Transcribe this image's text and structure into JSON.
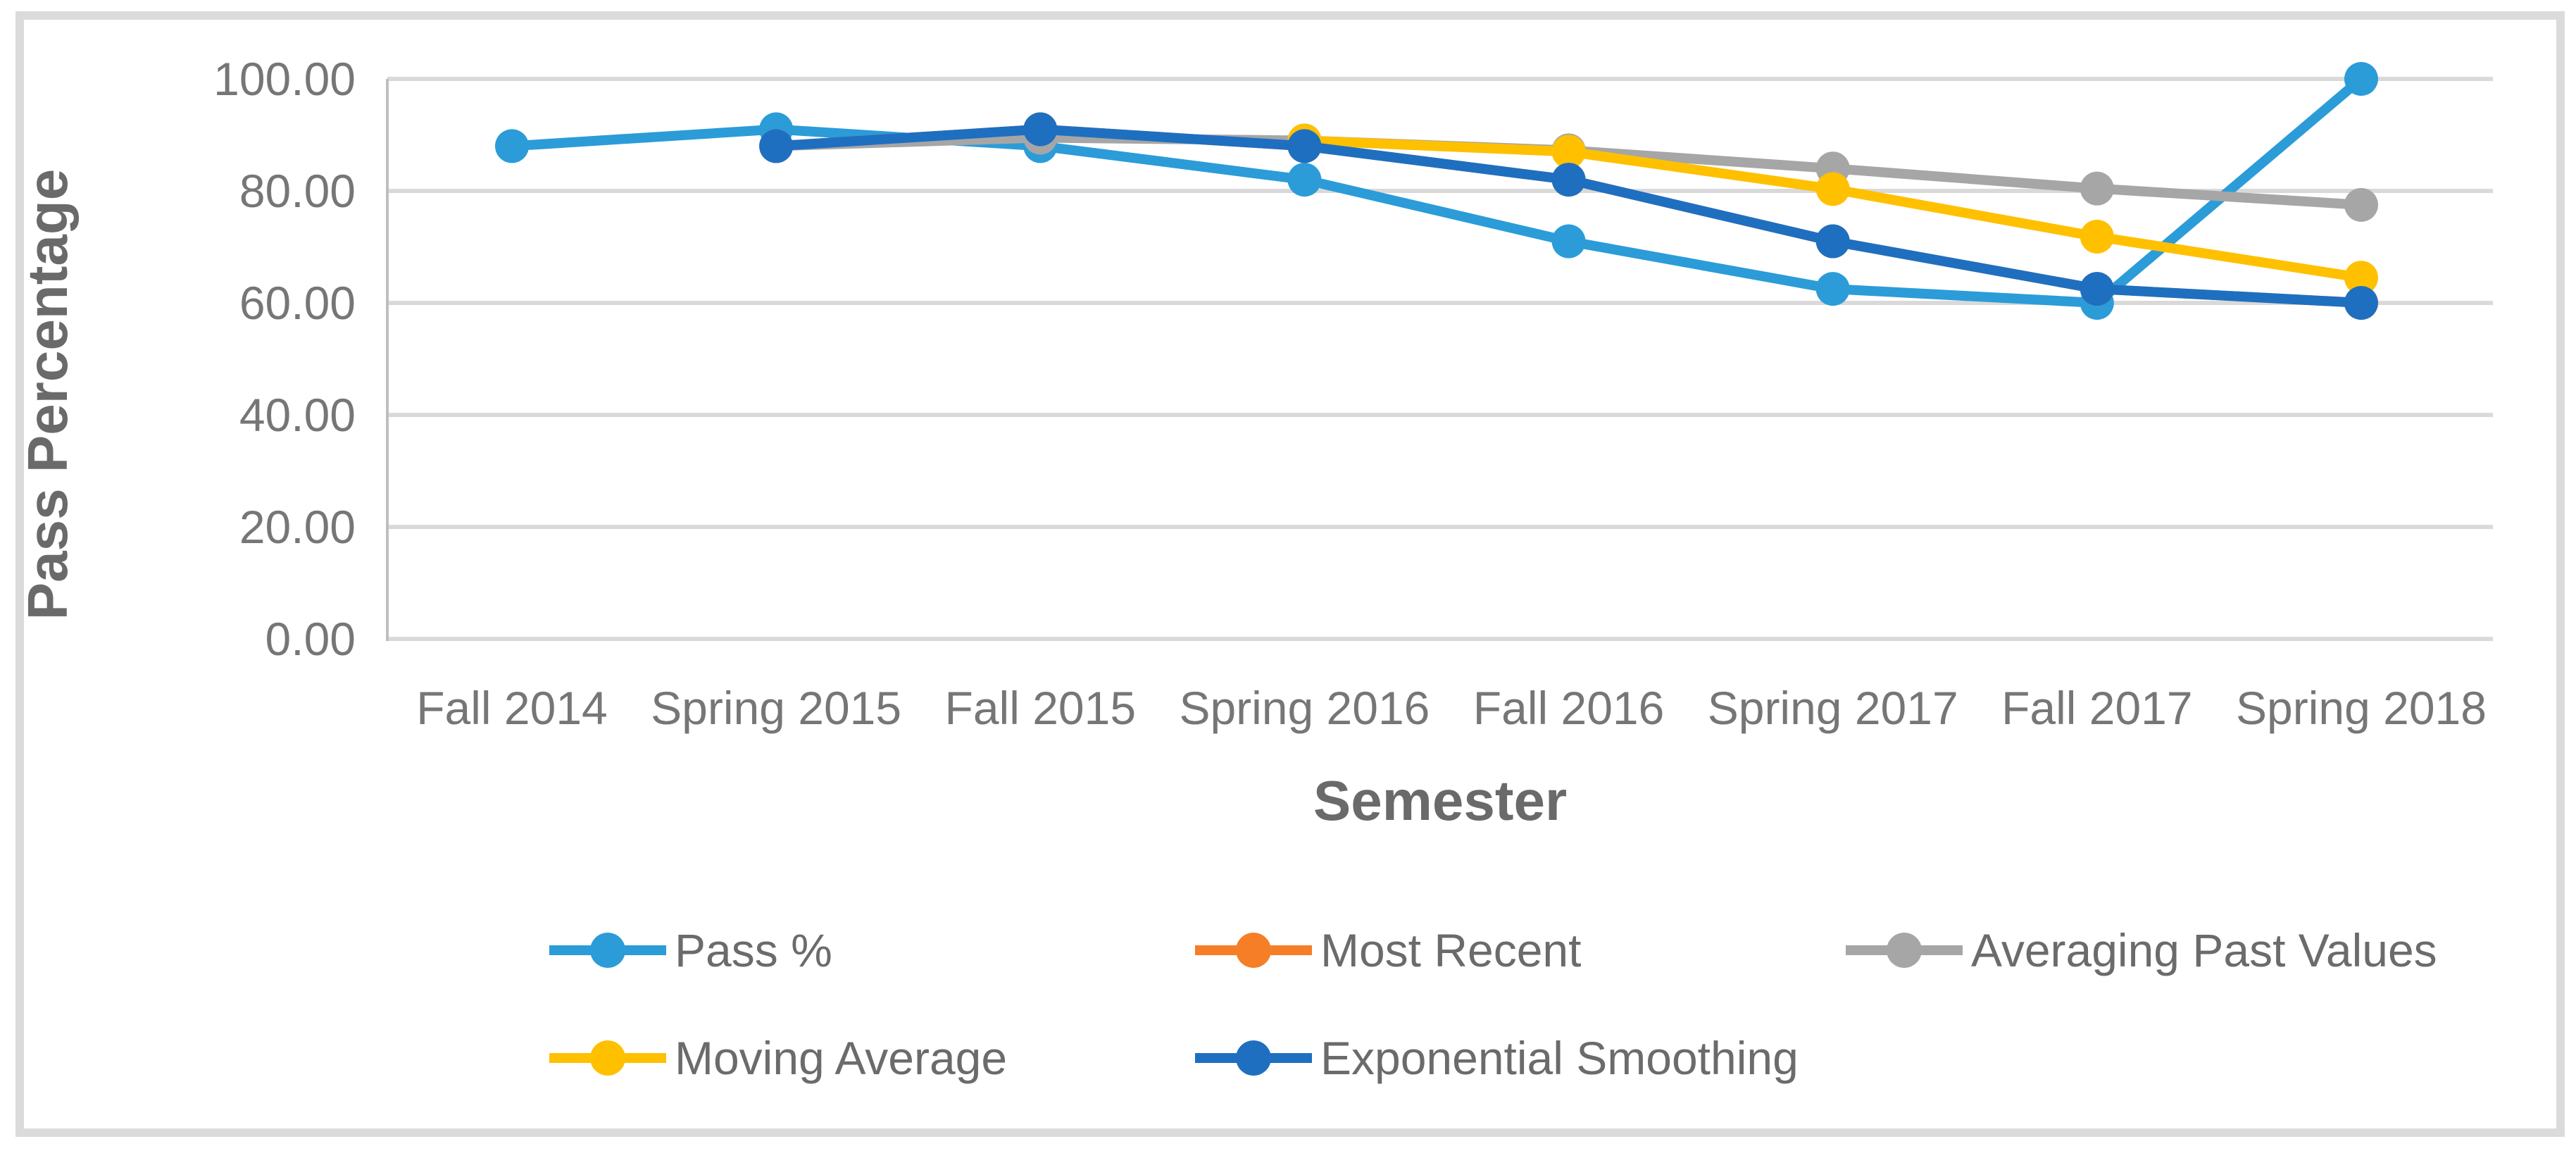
{
  "chart_data": {
    "type": "line",
    "title": "",
    "xlabel": "Semester",
    "ylabel": "Pass Percentage",
    "categories": [
      "Fall 2014",
      "Spring 2015",
      "Fall 2015",
      "Spring 2016",
      "Fall 2016",
      "Spring 2017",
      "Fall 2017",
      "Spring 2018"
    ],
    "ylim": [
      0,
      100
    ],
    "y_ticks": [
      0,
      20,
      40,
      60,
      80,
      100
    ],
    "y_tick_labels": [
      "0.00",
      "20.00",
      "40.00",
      "60.00",
      "80.00",
      "100.00"
    ],
    "grid": true,
    "legend_position": "bottom",
    "series": [
      {
        "name": "Pass %",
        "color": "#2B9CD8",
        "values": [
          88,
          91,
          88,
          82,
          71,
          62.5,
          60,
          100
        ]
      },
      {
        "name": "Most Recent",
        "color": "#F57E27",
        "values": [
          null,
          88,
          91,
          88,
          82,
          71,
          62.5,
          60
        ]
      },
      {
        "name": "Averaging Past Values",
        "color": "#A6A6A6",
        "values": [
          null,
          88,
          89.5,
          89,
          87.25,
          84,
          80.42,
          77.5
        ]
      },
      {
        "name": "Moving Average",
        "color": "#FFC000",
        "values": [
          null,
          null,
          null,
          89,
          87,
          80.33,
          71.83,
          64.5
        ]
      },
      {
        "name": "Exponential Smoothing",
        "color": "#1E6FC0",
        "values": [
          null,
          88,
          91,
          88,
          82,
          71,
          62.5,
          60
        ]
      }
    ],
    "legend_rows": [
      [
        "Pass %",
        "Most Recent",
        "Averaging Past Values"
      ],
      [
        "Moving Average",
        "Exponential Smoothing"
      ]
    ]
  },
  "colors": {
    "gridline": "#D9D9D9",
    "axis_line": "#BFBFBF",
    "chart_border": "#DBDBDB",
    "tick_label": "#767676",
    "legend_label": "#6B6B6B",
    "axis_title": "#6A6A6A"
  }
}
